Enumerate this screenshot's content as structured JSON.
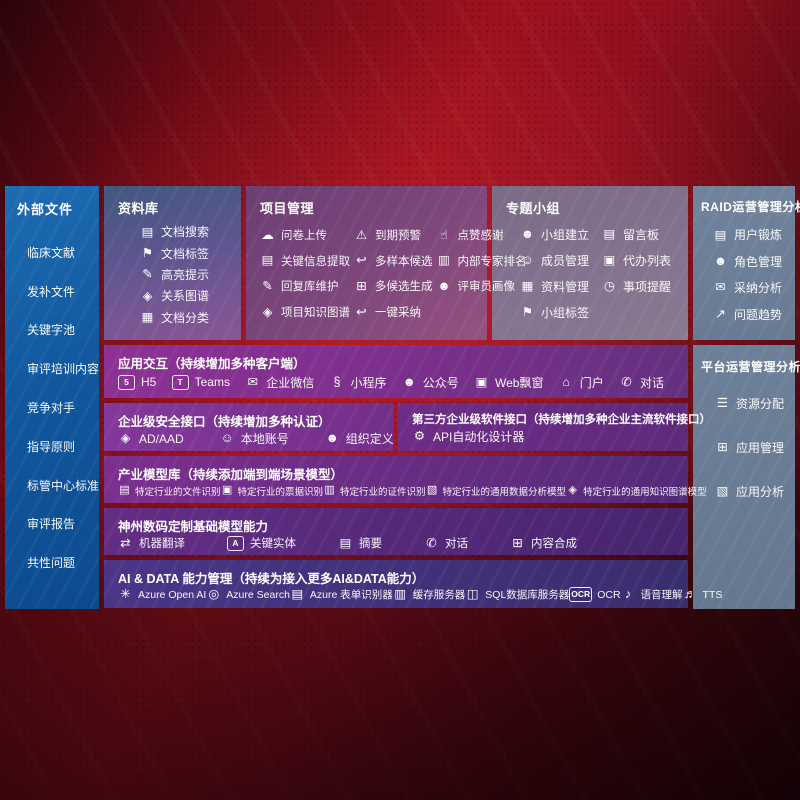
{
  "palette": {
    "background_red": "#a0121f",
    "background_dark": "#2b040a",
    "sidebar_blue_top": "#1d6cb2",
    "sidebar_blue_bottom": "#0c4a8e",
    "repository_gradient": [
      "#40587f",
      "#8a5596"
    ],
    "project_gradient": [
      "#6b3e74",
      "#95527f"
    ],
    "groups_gradient": [
      "#7b6b86",
      "#8b7990"
    ],
    "raid_panel": "#71829c",
    "platform_panel": "#6d8099",
    "app_interaction_gradient": [
      "#8d3195",
      "#64307f"
    ],
    "security_gradient": [
      "#83389b",
      "#722f8a"
    ],
    "third_party_gradient": [
      "#6e2c86",
      "#5e2a7c"
    ],
    "industry_gradient": [
      "#7c2f8e",
      "#532a78"
    ],
    "base_models_gradient": [
      "#632d84",
      "#46256e"
    ],
    "ai_data_gradient": [
      "#4a3587",
      "#3a2d6e"
    ],
    "text": "#ffffff"
  },
  "sidebar": {
    "title": "外部文件",
    "items": [
      "临床文献",
      "发补文件",
      "关键字池",
      "审评培训内容",
      "竞争对手",
      "指导原则",
      "标管中心标准",
      "审评报告",
      "共性问题"
    ]
  },
  "repository": {
    "title": "资料库",
    "items": [
      {
        "label": "文档搜索",
        "icon": "doc-search-icon",
        "glyph": "▤"
      },
      {
        "label": "文档标签",
        "icon": "doc-tag-icon",
        "glyph": "⚑"
      },
      {
        "label": "高亮提示",
        "icon": "highlight-icon",
        "glyph": "✎"
      },
      {
        "label": "关系图谱",
        "icon": "relation-graph-icon",
        "glyph": "◈"
      },
      {
        "label": "文档分类",
        "icon": "doc-classify-icon",
        "glyph": "▦"
      }
    ]
  },
  "project": {
    "title": "项目管理",
    "items": [
      {
        "label": "问卷上传",
        "icon": "cloud-upload-icon",
        "glyph": "☁"
      },
      {
        "label": "到期预警",
        "icon": "alarm-icon",
        "glyph": "⚠"
      },
      {
        "label": "点赞感谢",
        "icon": "thumbs-up-icon",
        "glyph": "☝"
      },
      {
        "label": "关键信息提取",
        "icon": "info-extract-icon",
        "glyph": "▤"
      },
      {
        "label": "多样本候选",
        "icon": "multi-sample-icon",
        "glyph": "↩"
      },
      {
        "label": "内部专家排名",
        "icon": "expert-rank-icon",
        "glyph": "▥"
      },
      {
        "label": "回复库维护",
        "icon": "reply-maintain-icon",
        "glyph": "✎"
      },
      {
        "label": "多候选生成",
        "icon": "multi-generate-icon",
        "glyph": "⊞"
      },
      {
        "label": "评审员画像",
        "icon": "reviewer-profile-icon",
        "glyph": "☻"
      },
      {
        "label": "项目知识图谱",
        "icon": "project-knowledge-graph-icon",
        "glyph": "◈"
      },
      {
        "label": "一键采纳",
        "icon": "one-click-adopt-icon",
        "glyph": "↩"
      }
    ]
  },
  "groups": {
    "title": "专题小组",
    "items": [
      {
        "label": "小组建立",
        "icon": "team-build-icon",
        "glyph": "☻"
      },
      {
        "label": "留言板",
        "icon": "bbs-board-icon",
        "glyph": "▤"
      },
      {
        "label": "成员管理",
        "icon": "member-manage-icon",
        "glyph": "☺"
      },
      {
        "label": "代办列表",
        "icon": "todo-list-icon",
        "glyph": "▣"
      },
      {
        "label": "资料管理",
        "icon": "material-manage-icon",
        "glyph": "▦"
      },
      {
        "label": "事项提醒",
        "icon": "reminder-bell-icon",
        "glyph": "◷"
      },
      {
        "label": "小组标签",
        "icon": "group-tag-icon",
        "glyph": "⚑"
      }
    ]
  },
  "raid": {
    "title": "RAID运营管理分析",
    "items": [
      {
        "label": "用户锻炼",
        "icon": "user-card-icon",
        "glyph": "▤"
      },
      {
        "label": "角色管理",
        "icon": "role-manage-icon",
        "glyph": "☻"
      },
      {
        "label": "采纳分析",
        "icon": "adoption-analysis-icon",
        "glyph": "✉"
      },
      {
        "label": "问题趋势",
        "icon": "issue-trend-icon",
        "glyph": "↗"
      }
    ]
  },
  "platform": {
    "title": "平台运营管理分析",
    "items": [
      {
        "label": "资源分配",
        "icon": "resource-allocation-icon",
        "glyph": "☰"
      },
      {
        "label": "应用管理",
        "icon": "app-manage-icon",
        "glyph": "⊞"
      },
      {
        "label": "应用分析",
        "icon": "app-analysis-icon",
        "glyph": "▧"
      }
    ]
  },
  "app_interaction": {
    "title": "应用交互（持续增加多种客户端）",
    "items": [
      {
        "label": "H5",
        "icon": "html5-icon",
        "glyph": "5",
        "boxed": true
      },
      {
        "label": "Teams",
        "icon": "teams-icon",
        "glyph": "T",
        "boxed": true
      },
      {
        "label": "企业微信",
        "icon": "wecom-icon",
        "glyph": "✉"
      },
      {
        "label": "小程序",
        "icon": "miniprogram-icon",
        "glyph": "§"
      },
      {
        "label": "公众号",
        "icon": "official-account-icon",
        "glyph": "☻"
      },
      {
        "label": "Web飘窗",
        "icon": "web-popup-icon",
        "glyph": "▣"
      },
      {
        "label": "门户",
        "icon": "portal-icon",
        "glyph": "⌂"
      },
      {
        "label": "对话",
        "icon": "dialog-icon",
        "glyph": "✆"
      }
    ]
  },
  "security_api": {
    "title": "企业级安全接口（持续增加多种认证）",
    "items": [
      {
        "label": "AD/AAD",
        "icon": "ad-aad-icon",
        "glyph": "◈"
      },
      {
        "label": "本地账号",
        "icon": "local-account-icon",
        "glyph": "☺"
      },
      {
        "label": "组织定义",
        "icon": "org-define-icon",
        "glyph": "☻"
      }
    ]
  },
  "third_party_api": {
    "title": "第三方企业级软件接口（持续增加多种企业主流软件接口）",
    "items": [
      {
        "label": "API自动化设计器",
        "icon": "api-designer-icon",
        "glyph": "⚙"
      }
    ]
  },
  "industry_models": {
    "title": "产业模型库（持续添加端到端场景模型）",
    "items": [
      {
        "label": "特定行业的文件识别",
        "icon": "file-recognition-icon",
        "glyph": "▤"
      },
      {
        "label": "特定行业的票据识别",
        "icon": "invoice-recognition-icon",
        "glyph": "▣"
      },
      {
        "label": "特定行业的证件识别",
        "icon": "certificate-recognition-icon",
        "glyph": "▥"
      },
      {
        "label": "特定行业的通用数据分析模型",
        "icon": "data-analysis-model-icon",
        "glyph": "▧"
      },
      {
        "label": "特定行业的通用知识图谱模型",
        "icon": "knowledge-graph-model-icon",
        "glyph": "◈"
      }
    ]
  },
  "base_models": {
    "title": "神州数码定制基础模型能力",
    "items": [
      {
        "label": "机器翻译",
        "icon": "translate-icon",
        "glyph": "⇄"
      },
      {
        "label": "关键实体",
        "icon": "key-entity-icon",
        "glyph": "A",
        "boxed": true
      },
      {
        "label": "摘要",
        "icon": "summary-icon",
        "glyph": "▤"
      },
      {
        "label": "对话",
        "icon": "chat-icon",
        "glyph": "✆"
      },
      {
        "label": "内容合成",
        "icon": "content-compose-icon",
        "glyph": "⊞"
      }
    ]
  },
  "ai_data": {
    "title": "AI & DATA 能力管理（持续为接入更多AI&DATA能力）",
    "items": [
      {
        "label": "Azure Open AI",
        "icon": "openai-icon",
        "glyph": "✳"
      },
      {
        "label": "Azure Search",
        "icon": "azure-search-icon",
        "glyph": "◎"
      },
      {
        "label": "Azure 表单识别器",
        "icon": "form-recognizer-icon",
        "glyph": "▤"
      },
      {
        "label": "缓存服务器",
        "icon": "cache-server-icon",
        "glyph": "▥"
      },
      {
        "label": "SQL数据库服务器",
        "icon": "sql-server-icon",
        "glyph": "◫"
      },
      {
        "label": "OCR",
        "icon": "ocr-icon",
        "glyph": "OCR",
        "boxed": true
      },
      {
        "label": "语音理解",
        "icon": "speech-understanding-icon",
        "glyph": "♪"
      },
      {
        "label": "TTS",
        "icon": "tts-icon",
        "glyph": "♬"
      }
    ]
  }
}
